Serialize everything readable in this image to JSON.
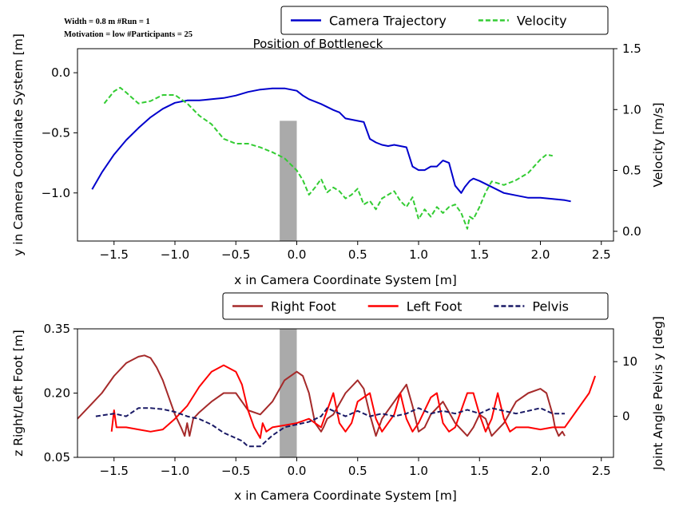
{
  "meta": {
    "line1": "Width = 0.8 m       #Run = 1",
    "line2": "Motivation = low   #Participants = 25"
  },
  "chart_data": [
    {
      "type": "line",
      "annotation": "Position of Bottleneck",
      "xlabel": "x in Camera Coordinate System [m]",
      "ylabel": "y in Camera Coordinate System [m]",
      "y2label": "Velocity [m/s]",
      "xlim": [
        -1.8,
        2.6
      ],
      "ylim": [
        -1.4,
        0.2
      ],
      "y2lim": [
        -0.08,
        1.5
      ],
      "xticks": [
        -1.5,
        -1.0,
        -0.5,
        0.0,
        0.5,
        1.0,
        1.5,
        2.0,
        2.5
      ],
      "xtick_labels": [
        "−1.5",
        "−1.0",
        "−0.5",
        "0.0",
        "0.5",
        "1.0",
        "1.5",
        "2.0",
        "2.5"
      ],
      "yticks": [
        0.0,
        -0.5,
        -1.0
      ],
      "ytick_labels": [
        "0.0",
        "−0.5",
        "−1.0"
      ],
      "y2ticks": [
        1.5,
        1.0,
        0.5,
        0.0
      ],
      "y2tick_labels": [
        "1.5",
        "1.0",
        "0.5",
        "0.0"
      ],
      "legend_position": "top-right",
      "bottleneck": {
        "x": [
          -0.14,
          0.0
        ],
        "y": [
          -1.4,
          -0.4
        ],
        "color": "#aaaaaa"
      },
      "series": [
        {
          "name": "Camera Trajectory",
          "axis": "left",
          "color": "#0000cc",
          "style": "solid",
          "x": [
            -1.68,
            -1.6,
            -1.5,
            -1.4,
            -1.3,
            -1.2,
            -1.1,
            -1.0,
            -0.9,
            -0.8,
            -0.7,
            -0.6,
            -0.5,
            -0.4,
            -0.3,
            -0.2,
            -0.1,
            0.0,
            0.05,
            0.1,
            0.2,
            0.3,
            0.35,
            0.4,
            0.5,
            0.55,
            0.6,
            0.65,
            0.7,
            0.75,
            0.8,
            0.9,
            0.95,
            1.0,
            1.05,
            1.1,
            1.15,
            1.2,
            1.25,
            1.3,
            1.35,
            1.38,
            1.42,
            1.45,
            1.5,
            1.6,
            1.7,
            1.8,
            1.9,
            2.0,
            2.1,
            2.2,
            2.25
          ],
          "y": [
            -0.97,
            -0.83,
            -0.68,
            -0.56,
            -0.46,
            -0.37,
            -0.3,
            -0.25,
            -0.23,
            -0.23,
            -0.22,
            -0.21,
            -0.19,
            -0.16,
            -0.14,
            -0.13,
            -0.13,
            -0.15,
            -0.19,
            -0.22,
            -0.26,
            -0.31,
            -0.33,
            -0.38,
            -0.4,
            -0.41,
            -0.55,
            -0.58,
            -0.6,
            -0.61,
            -0.6,
            -0.62,
            -0.78,
            -0.81,
            -0.81,
            -0.78,
            -0.78,
            -0.73,
            -0.75,
            -0.94,
            -1.0,
            -0.95,
            -0.9,
            -0.88,
            -0.9,
            -0.95,
            -1.0,
            -1.02,
            -1.04,
            -1.04,
            -1.05,
            -1.06,
            -1.07
          ]
        },
        {
          "name": "Velocity",
          "axis": "right",
          "color": "#33cc33",
          "style": "dashed",
          "x": [
            -1.58,
            -1.5,
            -1.45,
            -1.4,
            -1.3,
            -1.2,
            -1.1,
            -1.0,
            -0.9,
            -0.8,
            -0.7,
            -0.6,
            -0.5,
            -0.4,
            -0.3,
            -0.2,
            -0.1,
            0.0,
            0.05,
            0.1,
            0.15,
            0.2,
            0.25,
            0.3,
            0.35,
            0.4,
            0.45,
            0.5,
            0.55,
            0.6,
            0.65,
            0.7,
            0.75,
            0.8,
            0.85,
            0.9,
            0.95,
            1.0,
            1.05,
            1.1,
            1.15,
            1.2,
            1.25,
            1.3,
            1.35,
            1.4,
            1.42,
            1.45,
            1.5,
            1.55,
            1.6,
            1.7,
            1.8,
            1.9,
            2.0,
            2.05,
            2.1
          ],
          "y": [
            1.05,
            1.15,
            1.18,
            1.14,
            1.05,
            1.07,
            1.12,
            1.12,
            1.05,
            0.95,
            0.88,
            0.76,
            0.72,
            0.72,
            0.69,
            0.65,
            0.6,
            0.5,
            0.42,
            0.3,
            0.36,
            0.43,
            0.32,
            0.36,
            0.33,
            0.27,
            0.3,
            0.35,
            0.22,
            0.25,
            0.18,
            0.27,
            0.3,
            0.33,
            0.25,
            0.2,
            0.28,
            0.1,
            0.18,
            0.12,
            0.2,
            0.15,
            0.2,
            0.22,
            0.15,
            0.02,
            0.12,
            0.1,
            0.2,
            0.32,
            0.41,
            0.38,
            0.42,
            0.48,
            0.59,
            0.63,
            0.62
          ]
        }
      ]
    },
    {
      "type": "line",
      "xlabel": "x in Camera Coordinate System [m]",
      "ylabel": "z Right/Left Foot [m]",
      "y2label": "Joint Angle Pelvis y [deg]",
      "xlim": [
        -1.8,
        2.6
      ],
      "ylim": [
        0.05,
        0.35
      ],
      "y2lim": [
        -7.5,
        16
      ],
      "xticks": [
        -1.5,
        -1.0,
        -0.5,
        0.0,
        0.5,
        1.0,
        1.5,
        2.0,
        2.5
      ],
      "xtick_labels": [
        "−1.5",
        "−1.0",
        "−0.5",
        "0.0",
        "0.5",
        "1.0",
        "1.5",
        "2.0",
        "2.5"
      ],
      "yticks": [
        0.35,
        0.2,
        0.05
      ],
      "ytick_labels": [
        "0.35",
        "0.20",
        "0.05"
      ],
      "y2ticks": [
        10,
        0
      ],
      "y2tick_labels": [
        "10",
        "0"
      ],
      "legend_position": "top-right",
      "bottleneck": {
        "x": [
          -0.14,
          0.0
        ],
        "y": [
          0.05,
          0.35
        ],
        "color": "#aaaaaa"
      },
      "series": [
        {
          "name": "Right Foot",
          "axis": "left",
          "color": "#a52a2a",
          "style": "solid",
          "x": [
            -1.8,
            -1.7,
            -1.6,
            -1.5,
            -1.4,
            -1.3,
            -1.25,
            -1.2,
            -1.15,
            -1.1,
            -1.05,
            -1.0,
            -0.95,
            -0.92,
            -0.9,
            -0.88,
            -0.85,
            -0.8,
            -0.7,
            -0.6,
            -0.5,
            -0.4,
            -0.3,
            -0.2,
            -0.1,
            0.0,
            0.05,
            0.1,
            0.15,
            0.2,
            0.22,
            0.25,
            0.3,
            0.4,
            0.5,
            0.55,
            0.6,
            0.65,
            0.7,
            0.8,
            0.9,
            0.95,
            1.0,
            1.05,
            1.1,
            1.2,
            1.3,
            1.4,
            1.45,
            1.5,
            1.55,
            1.6,
            1.7,
            1.8,
            1.9,
            2.0,
            2.05,
            2.1,
            2.12,
            2.15,
            2.18,
            2.2
          ],
          "y": [
            0.14,
            0.17,
            0.2,
            0.24,
            0.27,
            0.285,
            0.288,
            0.282,
            0.26,
            0.23,
            0.19,
            0.15,
            0.12,
            0.1,
            0.13,
            0.1,
            0.14,
            0.155,
            0.18,
            0.2,
            0.2,
            0.16,
            0.15,
            0.18,
            0.23,
            0.25,
            0.24,
            0.2,
            0.13,
            0.11,
            0.12,
            0.14,
            0.15,
            0.2,
            0.23,
            0.21,
            0.15,
            0.1,
            0.14,
            0.18,
            0.22,
            0.17,
            0.11,
            0.12,
            0.15,
            0.18,
            0.13,
            0.1,
            0.12,
            0.15,
            0.14,
            0.1,
            0.13,
            0.18,
            0.2,
            0.21,
            0.2,
            0.15,
            0.12,
            0.1,
            0.11,
            0.1
          ]
        },
        {
          "name": "Left Foot",
          "axis": "left",
          "color": "#ff0000",
          "style": "solid",
          "x": [
            -1.52,
            -1.5,
            -1.48,
            -1.45,
            -1.4,
            -1.3,
            -1.2,
            -1.1,
            -1.0,
            -0.9,
            -0.8,
            -0.7,
            -0.6,
            -0.5,
            -0.45,
            -0.4,
            -0.35,
            -0.3,
            -0.28,
            -0.25,
            -0.2,
            -0.1,
            0.0,
            0.1,
            0.15,
            0.2,
            0.25,
            0.3,
            0.35,
            0.4,
            0.45,
            0.5,
            0.6,
            0.65,
            0.7,
            0.8,
            0.85,
            0.9,
            0.95,
            1.0,
            1.1,
            1.15,
            1.2,
            1.25,
            1.3,
            1.4,
            1.45,
            1.5,
            1.55,
            1.6,
            1.65,
            1.7,
            1.75,
            1.8,
            1.85,
            1.9,
            2.0,
            2.1,
            2.2,
            2.3,
            2.4,
            2.45
          ],
          "y": [
            0.11,
            0.16,
            0.12,
            0.12,
            0.12,
            0.115,
            0.11,
            0.115,
            0.14,
            0.17,
            0.215,
            0.25,
            0.265,
            0.25,
            0.22,
            0.16,
            0.12,
            0.095,
            0.13,
            0.11,
            0.12,
            0.125,
            0.13,
            0.14,
            0.13,
            0.12,
            0.16,
            0.2,
            0.13,
            0.11,
            0.13,
            0.18,
            0.2,
            0.14,
            0.11,
            0.15,
            0.2,
            0.14,
            0.11,
            0.13,
            0.19,
            0.2,
            0.13,
            0.11,
            0.12,
            0.2,
            0.2,
            0.15,
            0.11,
            0.14,
            0.2,
            0.14,
            0.11,
            0.12,
            0.12,
            0.12,
            0.115,
            0.12,
            0.12,
            0.16,
            0.2,
            0.24
          ]
        },
        {
          "name": "Pelvis",
          "axis": "right",
          "color": "#1a1a66",
          "style": "dashed",
          "x": [
            -1.65,
            -1.5,
            -1.4,
            -1.3,
            -1.2,
            -1.1,
            -1.0,
            -0.9,
            -0.8,
            -0.7,
            -0.6,
            -0.5,
            -0.45,
            -0.4,
            -0.3,
            -0.2,
            -0.1,
            0.0,
            0.1,
            0.2,
            0.25,
            0.3,
            0.4,
            0.5,
            0.6,
            0.7,
            0.8,
            0.9,
            1.0,
            1.1,
            1.2,
            1.3,
            1.4,
            1.5,
            1.6,
            1.7,
            1.8,
            1.9,
            2.0,
            2.1,
            2.2
          ],
          "y": [
            0,
            0.5,
            0,
            1.5,
            1.5,
            1.3,
            0.8,
            0,
            -0.5,
            -1.5,
            -3,
            -4,
            -4.5,
            -5.5,
            -5.5,
            -3.5,
            -2,
            -1.5,
            -1,
            0,
            1.5,
            1,
            0,
            1,
            0,
            0.5,
            0,
            0.5,
            1.5,
            0.5,
            1,
            0.5,
            1.2,
            0.5,
            1.5,
            1,
            0.5,
            1,
            1.5,
            0.5,
            0.5
          ]
        }
      ]
    }
  ]
}
